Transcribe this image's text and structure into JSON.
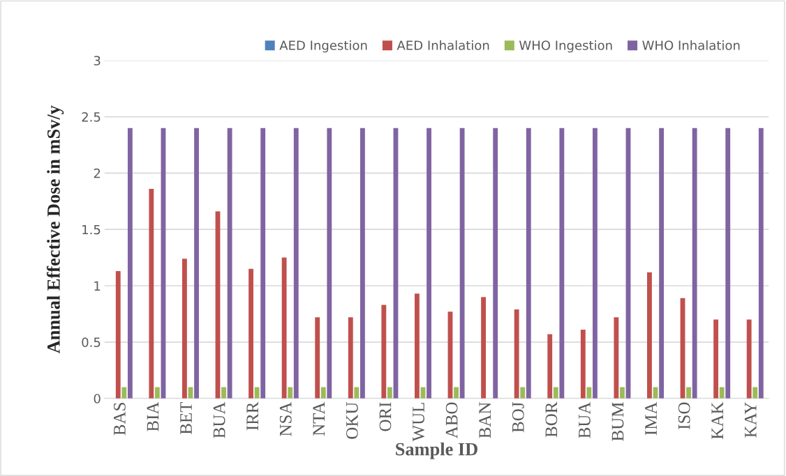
{
  "chart_data": {
    "type": "bar",
    "xlabel": "Sample ID",
    "ylabel": "Annual Effective Dose in mSv/y",
    "categories": [
      "BAS",
      "BIA",
      "BET",
      "BUA",
      "IRR",
      "NSA",
      "NTA",
      "OKU",
      "ORI",
      "WUL",
      "ABO",
      "BAN",
      "BOJ",
      "BOR",
      "BUA",
      "BUM",
      "IMA",
      "ISO",
      "KAK",
      "KAY"
    ],
    "series": [
      {
        "name": "AED Ingestion",
        "color": "#4f81bd",
        "values": [
          0,
          0,
          0,
          0,
          0,
          0,
          0,
          0,
          0,
          0,
          0,
          0,
          0,
          0,
          0,
          0,
          0,
          0,
          0,
          0
        ]
      },
      {
        "name": "AED Inhalation",
        "color": "#c0504d",
        "values": [
          1.13,
          1.86,
          1.24,
          1.66,
          1.15,
          1.25,
          0.72,
          0.72,
          0.83,
          0.93,
          0.77,
          0.9,
          0.79,
          0.57,
          0.61,
          0.72,
          1.12,
          0.89,
          0.7,
          0.7
        ]
      },
      {
        "name": "WHO Ingestion",
        "color": "#9bbb59",
        "values": [
          0.1,
          0.1,
          0.1,
          0.1,
          0.1,
          0.1,
          0.1,
          0.1,
          0.1,
          0.1,
          0.1,
          null,
          0.1,
          0.1,
          0.1,
          0.1,
          0.1,
          0.1,
          0.1,
          0.1
        ]
      },
      {
        "name": "WHO Inhalation",
        "color": "#8064a2",
        "values": [
          2.4,
          2.4,
          2.4,
          2.4,
          2.4,
          2.4,
          2.4,
          2.4,
          2.4,
          2.4,
          2.4,
          2.4,
          2.4,
          2.4,
          2.4,
          2.4,
          2.4,
          2.4,
          2.4,
          2.4
        ]
      }
    ],
    "ylim": [
      0,
      3
    ],
    "yticks": [
      0,
      0.5,
      1,
      1.5,
      2,
      2.5,
      3
    ],
    "grid": "y",
    "legend": "top"
  }
}
